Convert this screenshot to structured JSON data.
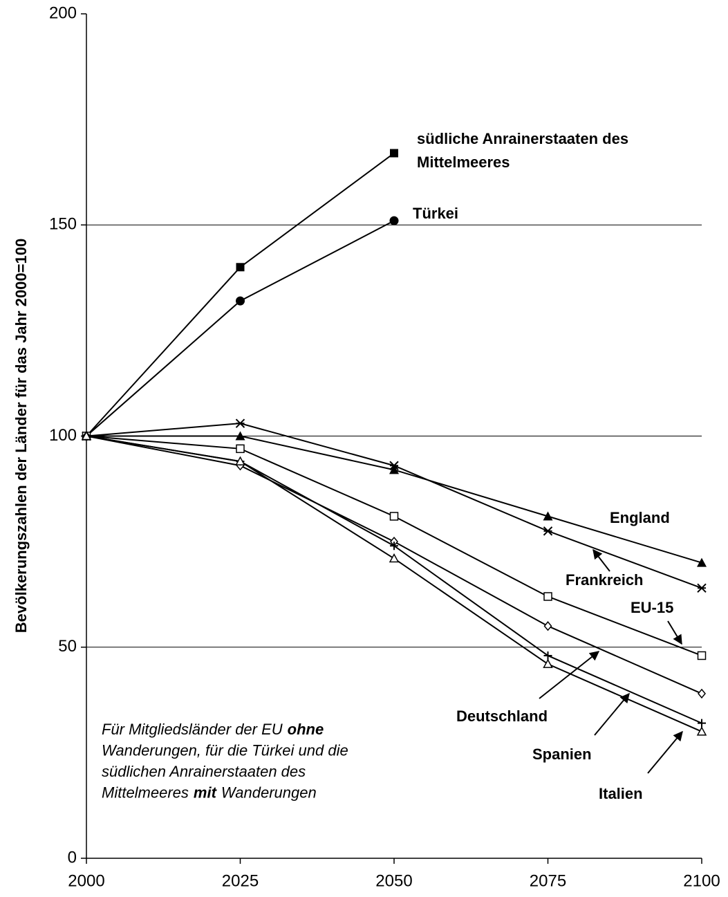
{
  "chart_data": {
    "type": "line",
    "y_label": "Bevölkerungszahlen der Länder für das Jahr 2000=100",
    "x": [
      2000,
      2025,
      2050,
      2075,
      2100
    ],
    "xlim": [
      2000,
      2100
    ],
    "xticks": [
      2000,
      2025,
      2050,
      2075,
      2100
    ],
    "ylim": [
      0,
      200
    ],
    "yticks": [
      0,
      50,
      100,
      150,
      200
    ],
    "grid": true,
    "series": [
      {
        "name": "südliche Anrainerstaaten des Mittelmeeres",
        "color": "#000000",
        "marker": "square-filled",
        "values": [
          100,
          140,
          167,
          null,
          null
        ]
      },
      {
        "name": "Türkei",
        "color": "#000000",
        "marker": "circle-filled",
        "values": [
          100,
          132,
          151,
          null,
          null
        ]
      },
      {
        "name": "England",
        "color": "#000000",
        "marker": "triangle-filled",
        "values": [
          100,
          100,
          92,
          81,
          70
        ]
      },
      {
        "name": "Frankreich",
        "color": "#000000",
        "marker": "asterisk",
        "values": [
          100,
          103,
          93,
          77.5,
          64
        ]
      },
      {
        "name": "EU-15",
        "color": "#000000",
        "marker": "square-open",
        "values": [
          100,
          97,
          81,
          62,
          48
        ]
      },
      {
        "name": "Deutschland",
        "color": "#000000",
        "marker": "diamond-open",
        "values": [
          100,
          93,
          75,
          55,
          39
        ]
      },
      {
        "name": "Spanien",
        "color": "#000000",
        "marker": "plus",
        "values": [
          100,
          94,
          74,
          48,
          32
        ]
      },
      {
        "name": "Italien",
        "color": "#000000",
        "marker": "triangle-open",
        "values": [
          100,
          94,
          71,
          46,
          30
        ]
      }
    ],
    "note": [
      [
        {
          "text": "Für Mitgliedsländer der EU",
          "bold": false
        },
        {
          "text": "ohne",
          "bold": true
        }
      ],
      [
        {
          "text": "Wanderungen, für die Türkei und die",
          "bold": false
        }
      ],
      [
        {
          "text": "südlichen Anrainerstaaten des",
          "bold": false
        }
      ],
      [
        {
          "text": "Mittelmeeres",
          "bold": false
        },
        {
          "text": "mit",
          "bold": true
        },
        {
          "text": "Wanderungen",
          "bold": false
        }
      ]
    ]
  }
}
